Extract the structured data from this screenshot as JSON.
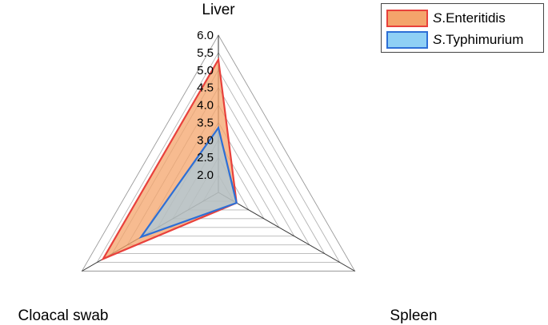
{
  "chart_data": {
    "type": "radar",
    "axes": [
      "Liver",
      "Spleen",
      "Cloacal swab"
    ],
    "r_ticks": [
      "2.0",
      "2.5",
      "3.0",
      "3.5",
      "4.0",
      "4.5",
      "5.0",
      "5.5",
      "6.0"
    ],
    "r_range": [
      1.5,
      6.0
    ],
    "grid": true,
    "legend_position": "top-right",
    "series": [
      {
        "name": "S.Enteritidis",
        "name_italic": "S",
        "name_rest": ".Enteritidis",
        "values": [
          5.3,
          2.1,
          5.3
        ],
        "fill": "#f4a46b",
        "fill_opacity": 0.75,
        "stroke": "#e8413c"
      },
      {
        "name": "S.Typhimurium",
        "name_italic": "S",
        "name_rest": ".Typhimurium",
        "values": [
          3.35,
          2.1,
          4.05
        ],
        "fill": "#8fd0f5",
        "fill_opacity": 0.55,
        "stroke": "#2d6fd6"
      }
    ]
  }
}
